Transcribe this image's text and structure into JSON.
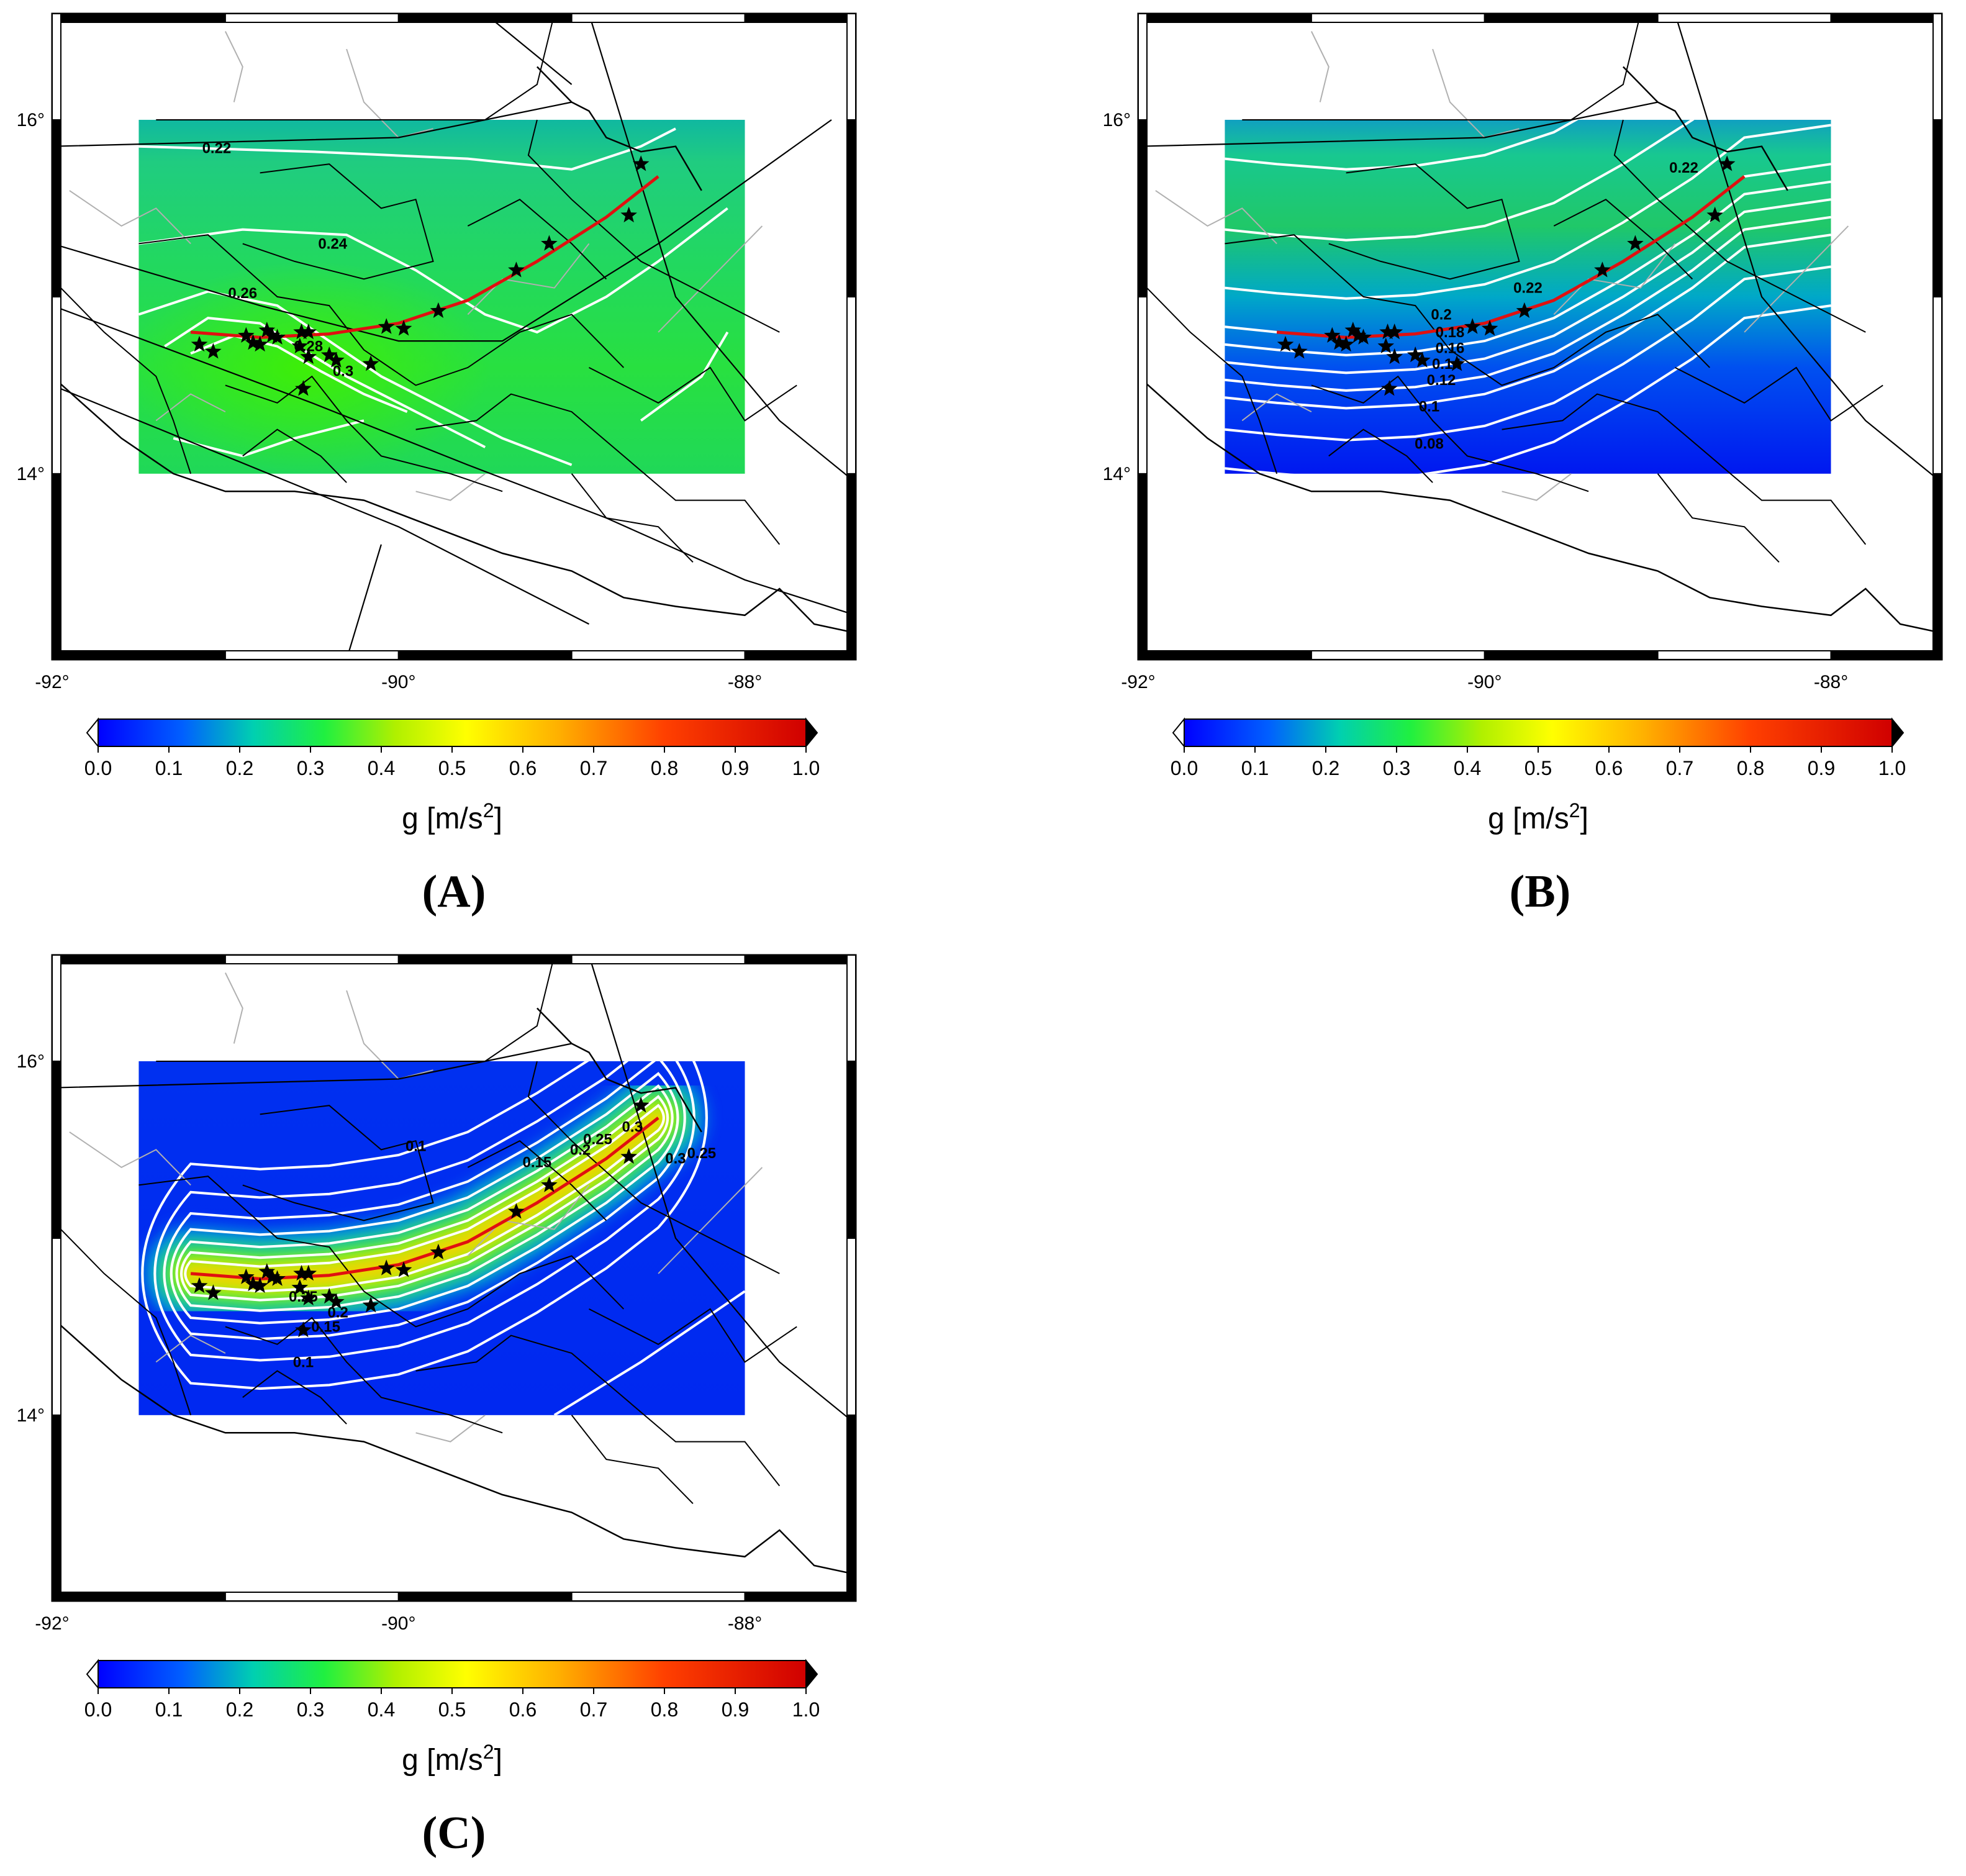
{
  "figure": {
    "panels": [
      {
        "label": "(A)",
        "map": {
          "lon_labels": [
            "-92°",
            "-90°",
            "-88°"
          ],
          "lat_labels": [
            "16°",
            "14°"
          ],
          "grid_extent": {
            "lon": [
              -91.5,
              -88.0
            ],
            "lat": [
              14.0,
              16.0
            ]
          },
          "background_level": 0.24,
          "contour_labels": [
            "0.22",
            "0.24",
            "0.26",
            "0.28",
            "0.3"
          ],
          "has_colorbar": true
        }
      },
      {
        "label": "(B)",
        "map": {
          "lon_labels": [
            "-92°",
            "-90°",
            "-88°"
          ],
          "lat_labels": [
            "16°",
            "14°"
          ],
          "grid_extent": {
            "lon": [
              -91.5,
              -88.0
            ],
            "lat": [
              14.0,
              16.0
            ]
          },
          "background_level": 0.12,
          "contour_labels": [
            "0.22",
            "0.22",
            "0.2",
            "0.18",
            "0.16",
            "0.14",
            "0.12",
            "0.1",
            "0.08"
          ],
          "has_colorbar": true
        }
      },
      {
        "label": "(C)",
        "map": {
          "lon_labels": [
            "-92°",
            "-90°",
            "-88°"
          ],
          "lat_labels": [
            "16°",
            "14°"
          ],
          "grid_extent": {
            "lon": [
              -91.5,
              -88.0
            ],
            "lat": [
              14.0,
              16.0
            ]
          },
          "background_level": 0.05,
          "contour_labels": [
            "0.1",
            "0.15",
            "0.2",
            "0.25",
            "0.3",
            "0.3",
            "0.25",
            "0.25",
            "0.2",
            "0.15",
            "0.1"
          ],
          "has_colorbar": true
        }
      }
    ],
    "colorbar": {
      "ticks": [
        "0.0",
        "0.1",
        "0.2",
        "0.3",
        "0.4",
        "0.5",
        "0.6",
        "0.7",
        "0.8",
        "0.9",
        "1.0"
      ],
      "title_main": "g [m/s",
      "title_sup": "2",
      "title_end": "]",
      "range": [
        0.0,
        1.0
      ],
      "colormap": [
        "#0000ff",
        "#0080ff",
        "#00e0a0",
        "#30f030",
        "#ffff00",
        "#ffa000",
        "#ff3000",
        "#e00000"
      ]
    },
    "colors": {
      "fault_trace": "#e01010",
      "contour": "#ffffff",
      "boundary": "#000000",
      "river": "#b0b0b0",
      "epicenter_star": "#000000"
    },
    "fault_trace": [
      [
        -91.2,
        14.8
      ],
      [
        -90.8,
        14.77
      ],
      [
        -90.4,
        14.79
      ],
      [
        -90.0,
        14.85
      ],
      [
        -89.6,
        14.98
      ],
      [
        -89.2,
        15.2
      ],
      [
        -88.8,
        15.45
      ],
      [
        -88.5,
        15.68
      ]
    ],
    "epicenters": [
      [
        -91.15,
        14.73
      ],
      [
        -91.07,
        14.69
      ],
      [
        -90.88,
        14.78
      ],
      [
        -90.84,
        14.74
      ],
      [
        -90.8,
        14.73
      ],
      [
        -90.76,
        14.81
      ],
      [
        -90.73,
        14.78
      ],
      [
        -90.7,
        14.77
      ],
      [
        -90.56,
        14.8
      ],
      [
        -90.52,
        14.8
      ],
      [
        -90.57,
        14.72
      ],
      [
        -90.52,
        14.66
      ],
      [
        -90.4,
        14.67
      ],
      [
        -90.36,
        14.64
      ],
      [
        -90.55,
        14.48
      ],
      [
        -90.16,
        14.62
      ],
      [
        -90.07,
        14.83
      ],
      [
        -89.97,
        14.82
      ],
      [
        -89.77,
        14.92
      ],
      [
        -89.32,
        15.15
      ],
      [
        -89.13,
        15.3
      ],
      [
        -88.67,
        15.46
      ],
      [
        -88.6,
        15.75
      ]
    ]
  }
}
